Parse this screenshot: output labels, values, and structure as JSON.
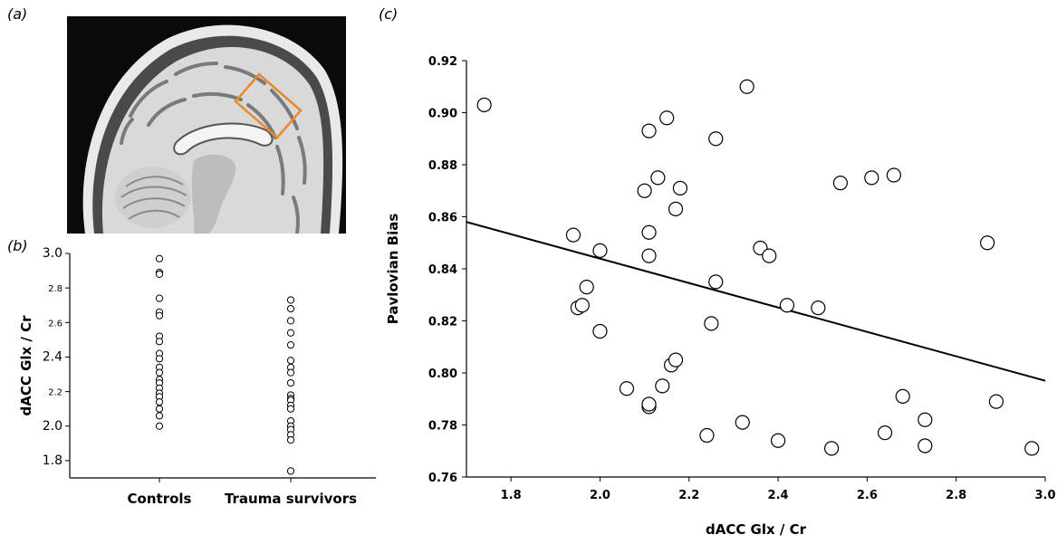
{
  "panels": {
    "a": "(a)",
    "b": "(b)",
    "c": "(c)"
  },
  "colors": {
    "roi_box": "#e8892b",
    "marker_stroke": "#000000",
    "marker_fill": "#ffffff",
    "fit_line": "#000000"
  },
  "chart_data": [
    {
      "type": "scatter",
      "panel": "(b)",
      "categories": [
        "Controls",
        "Trauma survivors"
      ],
      "ylabel": "dACC Glx / Cr",
      "ylim": [
        1.7,
        3.0
      ],
      "yticks": [
        "1.8",
        "2.0",
        "2.2",
        "2.4",
        "2.6",
        "2.8",
        "3.0"
      ],
      "series": [
        {
          "category": "Controls",
          "values": [
            2.97,
            2.89,
            2.88,
            2.74,
            2.66,
            2.64,
            2.52,
            2.49,
            2.42,
            2.39,
            2.34,
            2.31,
            2.27,
            2.25,
            2.22,
            2.19,
            2.17,
            2.14,
            2.1,
            2.06,
            2.0
          ]
        },
        {
          "category": "Trauma survivors",
          "values": [
            2.73,
            2.68,
            2.61,
            2.54,
            2.47,
            2.38,
            2.34,
            2.31,
            2.25,
            2.18,
            2.16,
            2.15,
            2.12,
            2.1,
            2.03,
            2.0,
            1.98,
            1.95,
            1.92,
            1.74
          ]
        }
      ]
    },
    {
      "type": "scatter",
      "panel": "(c)",
      "xlabel": "dACC Glx / Cr",
      "ylabel": "Pavlovian Bias",
      "xlim": [
        1.7,
        3.0
      ],
      "ylim": [
        0.76,
        0.92
      ],
      "xticks": [
        "1.8",
        "2.0",
        "2.2",
        "2.4",
        "2.6",
        "2.8",
        "3.0"
      ],
      "yticks": [
        "0.76",
        "0.78",
        "0.80",
        "0.82",
        "0.84",
        "0.86",
        "0.88",
        "0.90",
        "0.92"
      ],
      "points": [
        {
          "x": 1.74,
          "y": 0.903
        },
        {
          "x": 1.94,
          "y": 0.853
        },
        {
          "x": 1.95,
          "y": 0.825
        },
        {
          "x": 1.96,
          "y": 0.826
        },
        {
          "x": 1.97,
          "y": 0.833
        },
        {
          "x": 2.0,
          "y": 0.847
        },
        {
          "x": 2.0,
          "y": 0.816
        },
        {
          "x": 2.06,
          "y": 0.794
        },
        {
          "x": 2.1,
          "y": 0.87
        },
        {
          "x": 2.11,
          "y": 0.893
        },
        {
          "x": 2.11,
          "y": 0.854
        },
        {
          "x": 2.11,
          "y": 0.845
        },
        {
          "x": 2.11,
          "y": 0.787
        },
        {
          "x": 2.11,
          "y": 0.788
        },
        {
          "x": 2.13,
          "y": 0.875
        },
        {
          "x": 2.14,
          "y": 0.795
        },
        {
          "x": 2.15,
          "y": 0.898
        },
        {
          "x": 2.16,
          "y": 0.803
        },
        {
          "x": 2.17,
          "y": 0.805
        },
        {
          "x": 2.17,
          "y": 0.863
        },
        {
          "x": 2.18,
          "y": 0.871
        },
        {
          "x": 2.24,
          "y": 0.776
        },
        {
          "x": 2.25,
          "y": 0.819
        },
        {
          "x": 2.26,
          "y": 0.835
        },
        {
          "x": 2.26,
          "y": 0.89
        },
        {
          "x": 2.32,
          "y": 0.781
        },
        {
          "x": 2.33,
          "y": 0.91
        },
        {
          "x": 2.36,
          "y": 0.848
        },
        {
          "x": 2.38,
          "y": 0.845
        },
        {
          "x": 2.4,
          "y": 0.774
        },
        {
          "x": 2.42,
          "y": 0.826
        },
        {
          "x": 2.49,
          "y": 0.825
        },
        {
          "x": 2.52,
          "y": 0.771
        },
        {
          "x": 2.54,
          "y": 0.873
        },
        {
          "x": 2.61,
          "y": 0.875
        },
        {
          "x": 2.64,
          "y": 0.777
        },
        {
          "x": 2.66,
          "y": 0.876
        },
        {
          "x": 2.68,
          "y": 0.791
        },
        {
          "x": 2.73,
          "y": 0.782
        },
        {
          "x": 2.73,
          "y": 0.772
        },
        {
          "x": 2.87,
          "y": 0.85
        },
        {
          "x": 2.89,
          "y": 0.789
        },
        {
          "x": 2.97,
          "y": 0.771
        }
      ],
      "fit_line": {
        "x": [
          1.7,
          3.0
        ],
        "y": [
          0.858,
          0.797
        ]
      }
    }
  ]
}
